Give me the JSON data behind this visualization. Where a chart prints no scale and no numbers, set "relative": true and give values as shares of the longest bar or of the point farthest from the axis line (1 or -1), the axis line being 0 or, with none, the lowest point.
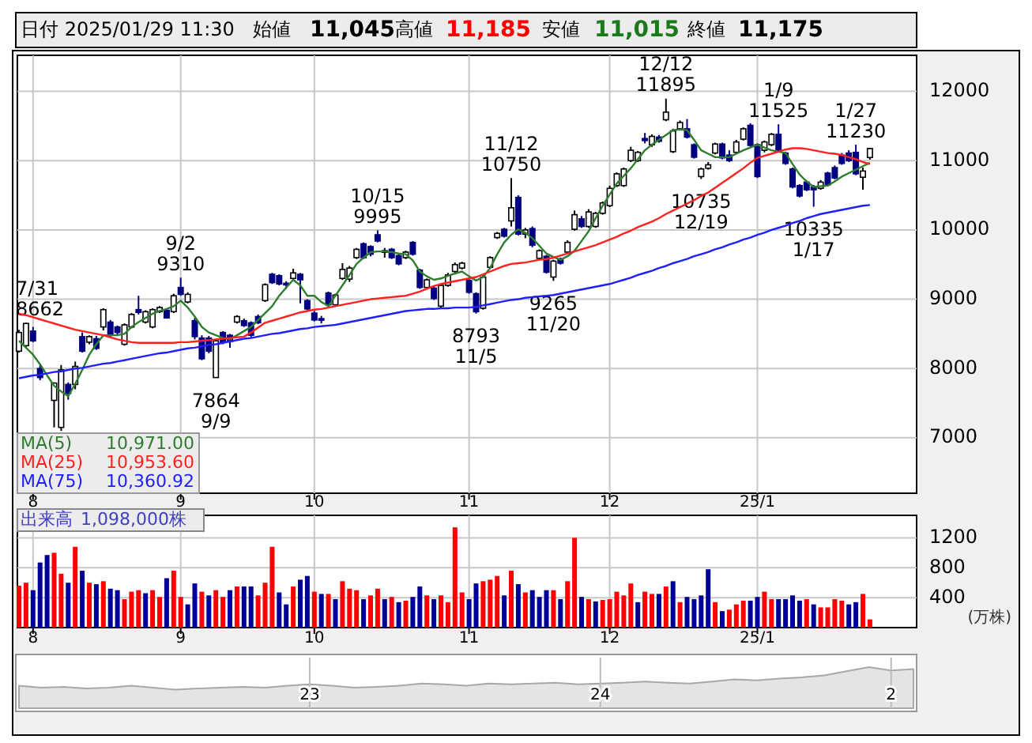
{
  "chart_data": [
    {
      "type": "candlestick",
      "title": "日付 2025/01/29 11:30",
      "annotations": [
        "始値",
        "11,045",
        "高値",
        "11,185",
        "安値",
        "11,015",
        "終値",
        "11,175",
        "10,971.00",
        "10,953.60",
        "10,360.92",
        {
          "text": "7/31",
          "y": 8662
        },
        {
          "text": "8662",
          "y": 8662
        },
        {
          "text": "9/2",
          "y": 9310
        },
        {
          "text": "9310",
          "y": 9310
        },
        {
          "text": "7864",
          "y": 7864
        },
        {
          "text": "9/9",
          "y": 7864
        },
        {
          "text": "10/15",
          "y": 9995
        },
        {
          "text": "9995",
          "y": 9995
        },
        {
          "text": "8793",
          "y": 8793
        },
        {
          "text": "11/5",
          "y": 8793
        },
        {
          "text": "11/12",
          "y": 10750
        },
        {
          "text": "10750",
          "y": 10750
        },
        {
          "text": "9265",
          "y": 9265
        },
        {
          "text": "11/20",
          "y": 9265
        },
        {
          "text": "12/12",
          "y": 11895
        },
        {
          "text": "11895",
          "y": 11895
        },
        {
          "text": "10735",
          "y": 10735
        },
        {
          "text": "12/19",
          "y": 10735
        },
        {
          "text": "1/9",
          "y": 11525
        },
        {
          "text": "11525",
          "y": 11525
        },
        {
          "text": "10335",
          "y": 10335
        },
        {
          "text": "1/17",
          "y": 10335
        },
        {
          "text": "1/27",
          "y": 11230
        },
        {
          "text": "11230",
          "y": 11230
        }
      ],
      "categories": [
        null,
        null,
        "8",
        null,
        null,
        null,
        null,
        null,
        null,
        null,
        null,
        null,
        null,
        null,
        null,
        null,
        null,
        null,
        null,
        null,
        null,
        null,
        null,
        "9",
        null,
        null,
        null,
        null,
        null,
        null,
        null,
        null,
        null,
        null,
        null,
        null,
        null,
        null,
        null,
        null,
        null,
        null,
        "10",
        null,
        null,
        null,
        null,
        null,
        null,
        null,
        null,
        null,
        null,
        null,
        null,
        null,
        null,
        null,
        null,
        null,
        null,
        null,
        null,
        null,
        "11",
        null,
        null,
        null,
        null,
        null,
        null,
        null,
        null,
        null,
        null,
        null,
        null,
        null,
        null,
        null,
        null,
        null,
        null,
        null,
        "12",
        null,
        null,
        null,
        null,
        null,
        null,
        null,
        null,
        null,
        null,
        null,
        null,
        null,
        null,
        null,
        null,
        null,
        null,
        null,
        null,
        "25/1",
        null,
        null,
        null,
        null,
        null,
        null,
        null,
        null,
        null,
        null,
        null,
        null,
        null,
        null,
        null,
        null
      ],
      "ohlc": [
        [
          8250,
          8560,
          8230,
          8520
        ],
        [
          8330,
          8662,
          8300,
          8650
        ],
        [
          8540,
          8600,
          8380,
          8400
        ],
        [
          8000,
          8050,
          7830,
          7870
        ],
        null,
        [
          7540,
          7800,
          7150,
          7790
        ],
        [
          7150,
          8050,
          7100,
          7980
        ],
        [
          7770,
          7800,
          7550,
          7640
        ],
        [
          7770,
          8100,
          7700,
          8030
        ],
        [
          8460,
          8520,
          8230,
          8250
        ],
        [
          8380,
          8480,
          8350,
          8460
        ],
        [
          8430,
          8470,
          8270,
          8290
        ],
        [
          8600,
          8870,
          8550,
          8850
        ],
        [
          8670,
          8700,
          8450,
          8480
        ],
        [
          8600,
          8620,
          8480,
          8520
        ],
        [
          8350,
          8650,
          8330,
          8630
        ],
        [
          8600,
          8800,
          8580,
          8780
        ],
        [
          8850,
          9050,
          8780,
          8810
        ],
        [
          8670,
          8840,
          8650,
          8820
        ],
        [
          8600,
          8870,
          8580,
          8850
        ],
        [
          8820,
          8900,
          8800,
          8880
        ],
        [
          8840,
          8860,
          8720,
          8730
        ],
        [
          8820,
          9080,
          8800,
          9050
        ],
        [
          9170,
          9310,
          9050,
          9070
        ],
        [
          8960,
          9100,
          8940,
          9070
        ],
        [
          8690,
          8730,
          8420,
          8460
        ],
        [
          8440,
          8480,
          8120,
          8140
        ],
        [
          8440,
          8470,
          8220,
          8250
        ],
        [
          7870,
          8420,
          7864,
          8400
        ],
        [
          8520,
          8540,
          8350,
          8380
        ],
        [
          8480,
          8500,
          8300,
          8390
        ],
        [
          8670,
          8770,
          8650,
          8750
        ],
        [
          8690,
          8720,
          8600,
          8620
        ],
        [
          8660,
          8680,
          8450,
          8480
        ],
        [
          8750,
          8780,
          8640,
          8660
        ],
        [
          8980,
          9230,
          8960,
          9210
        ],
        [
          9360,
          9380,
          9220,
          9240
        ],
        [
          9340,
          9360,
          9200,
          9220
        ],
        [
          9230,
          9260,
          9150,
          9220
        ],
        [
          9300,
          9440,
          9280,
          9380
        ],
        [
          9360,
          9380,
          8940,
          9280
        ],
        [
          8980,
          9000,
          8840,
          8860
        ],
        [
          8800,
          8830,
          8680,
          8700
        ],
        [
          8720,
          8760,
          8650,
          8700
        ],
        [
          9090,
          9110,
          8900,
          8920
        ],
        [
          8920,
          9080,
          8900,
          9060
        ],
        [
          9300,
          9520,
          9280,
          9430
        ],
        [
          9290,
          9480,
          9250,
          9450
        ],
        [
          9600,
          9740,
          9580,
          9720
        ],
        [
          9800,
          9820,
          9580,
          9600
        ],
        [
          9760,
          9780,
          9620,
          9650
        ],
        [
          9930,
          9995,
          9820,
          9840
        ],
        [
          9680,
          9740,
          9600,
          9700
        ],
        [
          9720,
          9740,
          9580,
          9600
        ],
        [
          9630,
          9650,
          9490,
          9510
        ],
        [
          9600,
          9700,
          9580,
          9680
        ],
        [
          9820,
          9840,
          9630,
          9650
        ],
        [
          9420,
          9440,
          9150,
          9170
        ],
        [
          9170,
          9300,
          9150,
          9280
        ],
        [
          9160,
          9180,
          8990,
          9010
        ],
        [
          8900,
          9230,
          8880,
          9200
        ],
        [
          9200,
          9380,
          9180,
          9350
        ],
        [
          9400,
          9530,
          9380,
          9500
        ],
        [
          9450,
          9540,
          9430,
          9520
        ],
        [
          9270,
          9290,
          9080,
          9100
        ],
        [
          9080,
          9100,
          8793,
          8820
        ],
        [
          8870,
          9350,
          8850,
          9320
        ],
        [
          9460,
          9620,
          9440,
          9600
        ],
        [
          9890,
          9970,
          9870,
          9950
        ],
        [
          10010,
          10030,
          9890,
          9910
        ],
        [
          10130,
          10750,
          10050,
          10320
        ],
        [
          10470,
          10500,
          9920,
          9940
        ],
        [
          9940,
          10030,
          9880,
          10000
        ],
        [
          10020,
          10050,
          9750,
          9780
        ],
        [
          9590,
          9720,
          9570,
          9700
        ],
        [
          9620,
          9640,
          9370,
          9390
        ],
        [
          9320,
          9570,
          9265,
          9550
        ],
        [
          9580,
          9600,
          9500,
          9520
        ],
        [
          9680,
          9850,
          9660,
          9820
        ],
        [
          10010,
          10280,
          9990,
          10220
        ],
        [
          10160,
          10200,
          10030,
          10050
        ],
        [
          10050,
          10300,
          10030,
          10260
        ],
        [
          10050,
          10260,
          10030,
          10240
        ],
        [
          10240,
          10410,
          10220,
          10390
        ],
        [
          10350,
          10640,
          10330,
          10600
        ],
        [
          10640,
          10830,
          10620,
          10810
        ],
        [
          10640,
          10900,
          10620,
          10880
        ],
        [
          11000,
          11200,
          10980,
          11150
        ],
        [
          11000,
          11140,
          10980,
          11120
        ],
        [
          11320,
          11400,
          11250,
          11290
        ],
        [
          11230,
          11380,
          11200,
          11350
        ],
        [
          11340,
          11370,
          11260,
          11280
        ],
        [
          11590,
          11895,
          11570,
          11700
        ],
        [
          11130,
          11460,
          11110,
          11430
        ],
        [
          11460,
          11580,
          11440,
          11550
        ],
        [
          11460,
          11600,
          11320,
          11340
        ],
        [
          11230,
          11250,
          11030,
          11050
        ],
        [
          10770,
          10900,
          10735,
          10880
        ],
        [
          10890,
          10980,
          10870,
          10940
        ],
        [
          11110,
          11260,
          11090,
          11240
        ],
        [
          11240,
          11260,
          11020,
          11040
        ],
        [
          11080,
          11150,
          10980,
          11000
        ],
        [
          11120,
          11300,
          11100,
          11270
        ],
        [
          11310,
          11480,
          11290,
          11460
        ],
        [
          11510,
          11540,
          11200,
          11220
        ],
        [
          11230,
          11250,
          10750,
          10770
        ],
        [
          11150,
          11290,
          11120,
          11270
        ],
        [
          11230,
          11400,
          11210,
          11380
        ],
        [
          11380,
          11525,
          11130,
          11150
        ],
        [
          11110,
          11130,
          10940,
          10960
        ],
        [
          10880,
          10900,
          10600,
          10620
        ],
        [
          10640,
          10660,
          10470,
          10490
        ],
        [
          10690,
          10710,
          10560,
          10580
        ],
        [
          10620,
          10650,
          10335,
          10580
        ],
        [
          10600,
          10720,
          10580,
          10690
        ],
        [
          10820,
          10840,
          10630,
          10650
        ],
        [
          10900,
          10930,
          10730,
          10750
        ],
        [
          11080,
          11110,
          10940,
          10960
        ],
        [
          11110,
          11150,
          10980,
          11000
        ],
        [
          11120,
          11230,
          10790,
          10810
        ],
        [
          10760,
          10900,
          10580,
          10850
        ],
        [
          11045,
          11185,
          11015,
          11175
        ]
      ],
      "series": [
        {
          "type": "line",
          "name": "MA(5)",
          "color": "#2e7d2e",
          "values": [
            8400,
            8300,
            8200,
            8060,
            7900,
            7750,
            7670,
            7600,
            7780,
            7980,
            8200,
            8350,
            8480,
            8480,
            8480,
            8500,
            8600,
            8670,
            8730,
            8790,
            8830,
            8860,
            8900,
            8980,
            8880,
            8750,
            8600,
            8520,
            8480,
            8440,
            8420,
            8480,
            8540,
            8600,
            8700,
            8800,
            8900,
            9050,
            9170,
            9280,
            9200,
            9050,
            9050,
            8960,
            8900,
            9050,
            9200,
            9350,
            9510,
            9600,
            9680,
            9690,
            9690,
            9680,
            9660,
            9650,
            9560,
            9400,
            9330,
            9280,
            9300,
            9340,
            9370,
            9400,
            9330,
            9270,
            9320,
            9450,
            9650,
            9820,
            9930,
            10010,
            9960,
            9880,
            9770,
            9660,
            9610,
            9570,
            9620,
            9700,
            9840,
            9980,
            10170,
            10350,
            10510,
            10670,
            10780,
            10890,
            11020,
            11150,
            11230,
            11300,
            11370,
            11440,
            11450,
            11440,
            11300,
            11150,
            11100,
            11050,
            11050,
            11050,
            11100,
            11150,
            11190,
            11230,
            11190,
            11150,
            11130,
            11110,
            10950,
            10800,
            10700,
            10620,
            10630,
            10640,
            10700,
            10770,
            10820,
            10870,
            10920,
            10970
          ]
        },
        {
          "type": "line",
          "name": "MA(25)",
          "color": "#ff2020",
          "values": [
            8790,
            8770,
            8740,
            8710,
            8680,
            8650,
            8620,
            8590,
            8560,
            8540,
            8520,
            8500,
            8480,
            8450,
            8420,
            8400,
            8380,
            8370,
            8370,
            8370,
            8370,
            8370,
            8370,
            8380,
            8380,
            8390,
            8400,
            8410,
            8420,
            8430,
            8440,
            8450,
            8460,
            8520,
            8590,
            8660,
            8690,
            8720,
            8750,
            8780,
            8810,
            8830,
            8850,
            8860,
            8880,
            8900,
            8920,
            8940,
            8960,
            8980,
            9000,
            9010,
            9020,
            9030,
            9040,
            9050,
            9080,
            9110,
            9150,
            9190,
            9220,
            9240,
            9260,
            9280,
            9300,
            9320,
            9360,
            9400,
            9440,
            9480,
            9510,
            9520,
            9530,
            9550,
            9570,
            9580,
            9600,
            9630,
            9660,
            9690,
            9720,
            9750,
            9780,
            9820,
            9860,
            9900,
            9950,
            9990,
            10040,
            10080,
            10120,
            10170,
            10230,
            10280,
            10330,
            10380,
            10430,
            10490,
            10540,
            10610,
            10680,
            10750,
            10820,
            10890,
            10970,
            11040,
            11070,
            11100,
            11130,
            11160,
            11180,
            11180,
            11170,
            11150,
            11130,
            11110,
            11100,
            11080,
            11050,
            11020,
            10980,
            10950
          ]
        },
        {
          "type": "line",
          "name": "MA(75)",
          "color": "#2020ff",
          "values": [
            7860,
            7880,
            7900,
            7910,
            7930,
            7950,
            7960,
            7980,
            8000,
            8010,
            8030,
            8050,
            8070,
            8080,
            8100,
            8120,
            8140,
            8160,
            8180,
            8200,
            8220,
            8230,
            8250,
            8270,
            8290,
            8300,
            8320,
            8340,
            8350,
            8370,
            8390,
            8410,
            8430,
            8440,
            8460,
            8480,
            8500,
            8510,
            8530,
            8550,
            8570,
            8580,
            8600,
            8610,
            8620,
            8630,
            8650,
            8670,
            8690,
            8710,
            8730,
            8750,
            8770,
            8790,
            8810,
            8830,
            8840,
            8850,
            8860,
            8860,
            8870,
            8870,
            8880,
            8880,
            8880,
            8890,
            8910,
            8930,
            8950,
            8970,
            8990,
            9000,
            9020,
            9030,
            9040,
            9050,
            9060,
            9080,
            9100,
            9120,
            9140,
            9160,
            9180,
            9200,
            9220,
            9250,
            9280,
            9310,
            9350,
            9380,
            9410,
            9450,
            9480,
            9520,
            9550,
            9580,
            9620,
            9650,
            9680,
            9720,
            9750,
            9790,
            9820,
            9860,
            9890,
            9930,
            9960,
            10000,
            10030,
            10060,
            10100,
            10130,
            10170,
            10200,
            10230,
            10250,
            10270,
            10290,
            10310,
            10330,
            10350,
            10360
          ]
        }
      ],
      "ylim": [
        6200,
        12520
      ],
      "yticks": [
        7000,
        8000,
        9000,
        10000,
        11000,
        12000
      ],
      "grid": true,
      "legend": "bottom left"
    },
    {
      "type": "bar",
      "title": "出来高",
      "annotations": [
        "1,098,000株"
      ],
      "ylabel": "(万株)",
      "categories": [
        null,
        null,
        "8",
        null,
        null,
        null,
        null,
        null,
        null,
        null,
        null,
        null,
        null,
        null,
        null,
        null,
        null,
        null,
        null,
        null,
        null,
        null,
        null,
        "9",
        null,
        null,
        null,
        null,
        null,
        null,
        null,
        null,
        null,
        null,
        null,
        null,
        null,
        null,
        null,
        null,
        null,
        null,
        "10",
        null,
        null,
        null,
        null,
        null,
        null,
        null,
        null,
        null,
        null,
        null,
        null,
        null,
        null,
        null,
        null,
        null,
        null,
        null,
        null,
        null,
        "11",
        null,
        null,
        null,
        null,
        null,
        null,
        null,
        null,
        null,
        null,
        null,
        null,
        null,
        null,
        null,
        null,
        null,
        null,
        null,
        "12",
        null,
        null,
        null,
        null,
        null,
        null,
        null,
        null,
        null,
        null,
        null,
        null,
        null,
        null,
        null,
        null,
        null,
        null,
        null,
        null,
        "25/1",
        null,
        null,
        null,
        null,
        null,
        null,
        null,
        null,
        null,
        null,
        null,
        null,
        null,
        null,
        null,
        null
      ],
      "values": [
        560,
        600,
        500,
        870,
        970,
        1000,
        720,
        600,
        1080,
        760,
        600,
        580,
        620,
        520,
        500,
        380,
        480,
        500,
        460,
        500,
        410,
        660,
        760,
        410,
        310,
        590,
        480,
        430,
        500,
        410,
        500,
        550,
        550,
        550,
        430,
        600,
        1080,
        470,
        310,
        550,
        640,
        690,
        480,
        450,
        450,
        380,
        620,
        520,
        500,
        380,
        430,
        520,
        380,
        410,
        340,
        360,
        410,
        550,
        430,
        380,
        430,
        340,
        1340,
        470,
        380,
        590,
        620,
        640,
        690,
        430,
        760,
        580,
        470,
        500,
        410,
        500,
        500,
        380,
        620,
        1200,
        410,
        380,
        350,
        370,
        380,
        480,
        430,
        590,
        340,
        480,
        450,
        450,
        550,
        620,
        340,
        410,
        380,
        430,
        780,
        340,
        220,
        240,
        310,
        360,
        360,
        410,
        480,
        380,
        380,
        380,
        430,
        360,
        380,
        310,
        270,
        270,
        380,
        360,
        310,
        340,
        450,
        110
      ],
      "colors": [
        "#ff0000",
        "#ff0000",
        "#000099",
        "#000099",
        "#000099",
        "#ff0000",
        "#ff0000",
        "#000099",
        "#ff0000",
        "#000099",
        "#ff0000",
        "#000099",
        "#ff0000",
        "#000099",
        "#000099",
        "#ff0000",
        "#ff0000",
        "#ff0000",
        "#000099",
        "#ff0000",
        "#ff0000",
        "#000099",
        "#ff0000",
        "#ff0000",
        "#000099",
        "#000099",
        "#ff0000",
        "#000099",
        "#ff0000",
        "#ff0000",
        "#000099",
        "#ff0000",
        "#000099",
        "#000099",
        "#ff0000",
        "#ff0000",
        "#ff0000",
        "#000099",
        "#000099",
        "#ff0000",
        "#000099",
        "#000099",
        "#ff0000",
        "#000099",
        "#ff0000",
        "#000099",
        "#ff0000",
        "#ff0000",
        "#ff0000",
        "#000099",
        "#ff0000",
        "#ff0000",
        "#000099",
        "#ff0000",
        "#000099",
        "#ff0000",
        "#000099",
        "#000099",
        "#ff0000",
        "#000099",
        "#ff0000",
        "#ff0000",
        "#ff0000",
        "#ff0000",
        "#000099",
        "#000099",
        "#ff0000",
        "#ff0000",
        "#ff0000",
        "#000099",
        "#ff0000",
        "#000099",
        "#ff0000",
        "#000099",
        "#000099",
        "#000099",
        "#ff0000",
        "#000099",
        "#ff0000",
        "#ff0000",
        "#000099",
        "#ff0000",
        "#000099",
        "#ff0000",
        "#ff0000",
        "#ff0000",
        "#ff0000",
        "#ff0000",
        "#000099",
        "#ff0000",
        "#ff0000",
        "#000099",
        "#ff0000",
        "#000099",
        "#ff0000",
        "#000099",
        "#000099",
        "#000099",
        "#000099",
        "#ff0000",
        "#000099",
        "#ff0000",
        "#ff0000",
        "#ff0000",
        "#000099",
        "#000099",
        "#ff0000",
        "#ff0000",
        "#000099",
        "#000099",
        "#000099",
        "#000099",
        "#ff0000",
        "#000099",
        "#ff0000",
        "#ff0000",
        "#ff0000",
        "#ff0000",
        "#000099",
        "#000099",
        "#ff0000",
        "#ff0000"
      ],
      "ylim": [
        0,
        1500
      ],
      "yticks": [
        400,
        800,
        1200
      ],
      "grid": true
    },
    {
      "type": "area",
      "relative": true,
      "color": "#a8a8a8",
      "grid": "x",
      "categories": [
        null,
        null,
        null,
        null,
        null,
        null,
        null,
        null,
        null,
        null,
        null,
        null,
        null,
        "23",
        null,
        null,
        null,
        null,
        null,
        null,
        null,
        null,
        null,
        null,
        null,
        null,
        "24",
        null,
        null,
        null,
        null,
        null,
        null,
        null,
        null,
        null,
        null,
        null,
        null,
        "2",
        null
      ],
      "values": [
        0.55,
        0.5,
        0.52,
        0.48,
        0.5,
        0.55,
        0.5,
        0.45,
        0.48,
        0.5,
        0.52,
        0.5,
        0.55,
        0.58,
        0.55,
        0.5,
        0.52,
        0.55,
        0.6,
        0.58,
        0.55,
        0.6,
        0.58,
        0.6,
        0.62,
        0.58,
        0.6,
        0.62,
        0.65,
        0.62,
        0.6,
        0.65,
        0.7,
        0.68,
        0.72,
        0.75,
        0.8,
        0.9,
        1,
        0.92,
        0.95
      ]
    }
  ]
}
